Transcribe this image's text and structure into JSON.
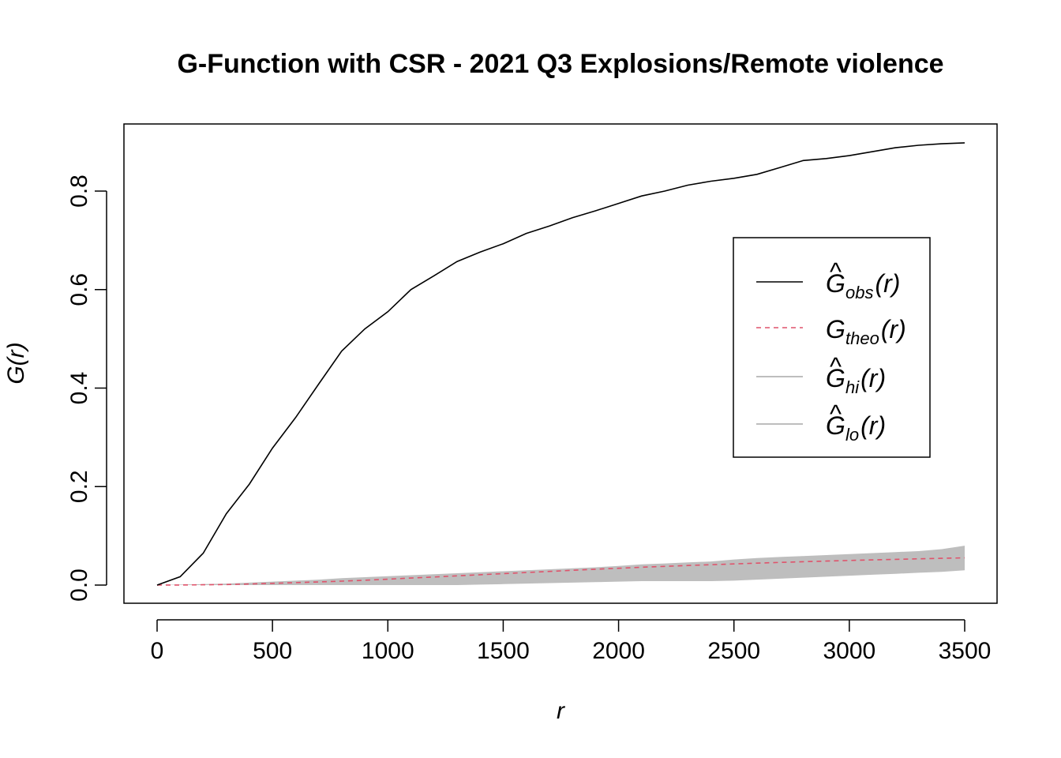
{
  "chart_data": {
    "type": "line",
    "title": "G-Function with CSR - 2021 Q3 Explosions/Remote violence",
    "xlabel": "r",
    "ylabel": "G(r)",
    "xlim": [
      0,
      3500
    ],
    "ylim": [
      0,
      0.9
    ],
    "x_ticks": [
      0,
      500,
      1000,
      1500,
      2000,
      2500,
      3000,
      3500
    ],
    "x_tick_labels": [
      "0",
      "500",
      "1000",
      "1500",
      "2000",
      "2500",
      "3000",
      "3500"
    ],
    "y_ticks": [
      0.0,
      0.2,
      0.4,
      0.6,
      0.8
    ],
    "y_tick_labels": [
      "0.0",
      "0.2",
      "0.4",
      "0.6",
      "0.8"
    ],
    "grid": false,
    "legend_position": "right",
    "x": [
      0,
      100,
      200,
      300,
      400,
      500,
      600,
      700,
      800,
      900,
      1000,
      1100,
      1200,
      1300,
      1400,
      1500,
      1600,
      1700,
      1800,
      1900,
      2000,
      2100,
      2200,
      2300,
      2400,
      2500,
      2600,
      2700,
      2800,
      2900,
      3000,
      3100,
      3200,
      3300,
      3400,
      3500
    ],
    "series": [
      {
        "name": "obs",
        "legend": {
          "main": "G",
          "hat": "^",
          "sub": "obs",
          "arg": "(r)"
        },
        "style": "solid",
        "color": "#000000",
        "values": [
          0.0,
          0.017,
          0.065,
          0.145,
          0.205,
          0.278,
          0.34,
          0.408,
          0.475,
          0.52,
          0.555,
          0.6,
          0.628,
          0.657,
          0.676,
          0.693,
          0.714,
          0.729,
          0.746,
          0.76,
          0.775,
          0.79,
          0.8,
          0.812,
          0.82,
          0.826,
          0.834,
          0.848,
          0.862,
          0.866,
          0.872,
          0.88,
          0.888,
          0.893,
          0.896,
          0.898
        ]
      },
      {
        "name": "theo",
        "legend": {
          "main": "G",
          "hat": "",
          "sub": "theo",
          "arg": "(r)"
        },
        "style": "dashed",
        "color": "#DF536B",
        "values": [
          0.0,
          0.0002,
          0.0006,
          0.0012,
          0.0022,
          0.0035,
          0.0049,
          0.0064,
          0.008,
          0.0098,
          0.012,
          0.0142,
          0.0164,
          0.0188,
          0.021,
          0.0232,
          0.0255,
          0.0278,
          0.03,
          0.0322,
          0.0342,
          0.0362,
          0.038,
          0.0398,
          0.0414,
          0.043,
          0.0445,
          0.046,
          0.0474,
          0.0488,
          0.05,
          0.0512,
          0.0523,
          0.0534,
          0.0544,
          0.0553
        ]
      },
      {
        "name": "hi",
        "legend": {
          "main": "G",
          "hat": "^",
          "sub": "hi",
          "arg": "(r)"
        },
        "style": "band",
        "color": "#BEBEBE",
        "values": [
          0.0,
          0.001,
          0.002,
          0.003,
          0.005,
          0.007,
          0.009,
          0.011,
          0.014,
          0.016,
          0.018,
          0.02,
          0.022,
          0.024,
          0.026,
          0.028,
          0.03,
          0.032,
          0.034,
          0.036,
          0.039,
          0.042,
          0.044,
          0.046,
          0.048,
          0.052,
          0.055,
          0.057,
          0.059,
          0.061,
          0.063,
          0.065,
          0.067,
          0.069,
          0.073,
          0.08
        ]
      },
      {
        "name": "lo",
        "legend": {
          "main": "G",
          "hat": "^",
          "sub": "lo",
          "arg": "(r)"
        },
        "style": "band",
        "color": "#BEBEBE",
        "values": [
          0.0,
          0.0,
          0.0,
          0.0,
          0.0,
          0.0,
          0.0,
          0.0,
          0.0,
          0.0,
          0.0,
          0.0,
          0.0,
          0.0,
          0.001,
          0.002,
          0.003,
          0.004,
          0.005,
          0.006,
          0.007,
          0.008,
          0.008,
          0.008,
          0.008,
          0.009,
          0.011,
          0.013,
          0.015,
          0.017,
          0.019,
          0.021,
          0.023,
          0.025,
          0.027,
          0.03
        ]
      }
    ]
  }
}
